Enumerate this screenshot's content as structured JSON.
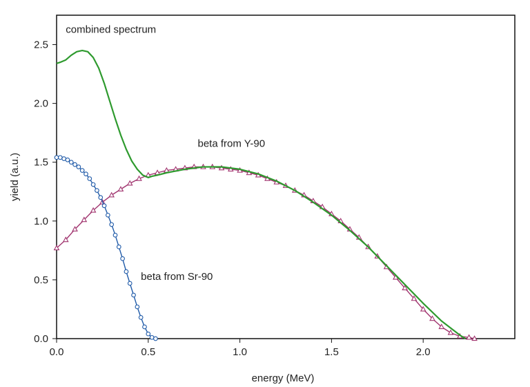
{
  "chart_data": {
    "type": "line",
    "xlabel": "energy (MeV)",
    "ylabel": "yield (a.u.)",
    "xlim": [
      0,
      2.5
    ],
    "ylim": [
      0,
      2.75
    ],
    "x_ticks": [
      {
        "value": 0,
        "label": "0.0"
      },
      {
        "value": 0.5,
        "label": "0.5"
      },
      {
        "value": 1.0,
        "label": "1.0"
      },
      {
        "value": 1.5,
        "label": "1.5"
      },
      {
        "value": 2.0,
        "label": "2.0"
      }
    ],
    "y_ticks": [
      {
        "value": 0,
        "label": "0.0"
      },
      {
        "value": 0.5,
        "label": "0.5"
      },
      {
        "value": 1.0,
        "label": "1.0"
      },
      {
        "value": 1.5,
        "label": "1.5"
      },
      {
        "value": 2.0,
        "label": "2.0"
      },
      {
        "value": 2.5,
        "label": "2.5"
      }
    ],
    "grid": false,
    "annotations": [
      {
        "text": "combined spectrum",
        "x": 0.05,
        "y": 2.6
      },
      {
        "text": "beta from Y-90",
        "x": 0.77,
        "y": 1.63
      },
      {
        "text": "beta from Sr-90",
        "x": 0.46,
        "y": 0.5
      }
    ],
    "series": [
      {
        "name": "",
        "style": "line",
        "color": "#2e9a2e",
        "x": [
          0,
          0.02,
          0.05,
          0.08,
          0.11,
          0.14,
          0.17,
          0.2,
          0.23,
          0.26,
          0.29,
          0.32,
          0.35,
          0.38,
          0.41,
          0.44,
          0.47,
          0.5,
          0.52,
          0.55,
          0.6,
          0.7,
          0.8,
          0.9,
          1.0,
          1.1,
          1.2,
          1.3,
          1.4,
          1.5,
          1.6,
          1.7,
          1.8,
          1.9,
          2.0,
          2.1,
          2.2,
          2.23
        ],
        "y": [
          2.34,
          2.35,
          2.37,
          2.41,
          2.44,
          2.45,
          2.44,
          2.39,
          2.3,
          2.17,
          2.02,
          1.87,
          1.73,
          1.61,
          1.51,
          1.44,
          1.39,
          1.37,
          1.38,
          1.39,
          1.41,
          1.44,
          1.46,
          1.46,
          1.44,
          1.4,
          1.34,
          1.26,
          1.16,
          1.05,
          0.92,
          0.78,
          0.62,
          0.46,
          0.3,
          0.15,
          0.03,
          0.0
        ]
      },
      {
        "name": "",
        "style": "line-circle-markers",
        "color": "#1f5aa8",
        "x": [
          0,
          0.02,
          0.04,
          0.06,
          0.08,
          0.1,
          0.12,
          0.14,
          0.16,
          0.18,
          0.2,
          0.22,
          0.24,
          0.26,
          0.28,
          0.3,
          0.32,
          0.34,
          0.36,
          0.38,
          0.4,
          0.42,
          0.44,
          0.46,
          0.48,
          0.5,
          0.52,
          0.54
        ],
        "y": [
          1.54,
          1.54,
          1.53,
          1.52,
          1.5,
          1.48,
          1.46,
          1.43,
          1.4,
          1.36,
          1.31,
          1.26,
          1.2,
          1.13,
          1.05,
          0.97,
          0.88,
          0.78,
          0.68,
          0.57,
          0.47,
          0.37,
          0.27,
          0.18,
          0.1,
          0.04,
          0.01,
          0.0
        ]
      },
      {
        "name": "",
        "style": "line-triangle-markers",
        "color": "#a0336e",
        "x": [
          0,
          0.05,
          0.1,
          0.15,
          0.2,
          0.25,
          0.3,
          0.35,
          0.4,
          0.45,
          0.5,
          0.55,
          0.6,
          0.65,
          0.7,
          0.75,
          0.8,
          0.85,
          0.9,
          0.95,
          1.0,
          1.05,
          1.1,
          1.15,
          1.2,
          1.25,
          1.3,
          1.35,
          1.4,
          1.45,
          1.5,
          1.55,
          1.6,
          1.65,
          1.7,
          1.75,
          1.8,
          1.85,
          1.9,
          1.95,
          2.0,
          2.05,
          2.1,
          2.15,
          2.2,
          2.25,
          2.28
        ],
        "y": [
          0.77,
          0.84,
          0.93,
          1.01,
          1.09,
          1.16,
          1.22,
          1.27,
          1.32,
          1.36,
          1.39,
          1.41,
          1.43,
          1.44,
          1.45,
          1.46,
          1.46,
          1.46,
          1.45,
          1.44,
          1.43,
          1.41,
          1.39,
          1.36,
          1.33,
          1.3,
          1.26,
          1.22,
          1.17,
          1.12,
          1.06,
          1.0,
          0.93,
          0.86,
          0.78,
          0.7,
          0.61,
          0.52,
          0.43,
          0.34,
          0.25,
          0.17,
          0.1,
          0.05,
          0.02,
          0.01,
          0.0
        ]
      }
    ]
  }
}
